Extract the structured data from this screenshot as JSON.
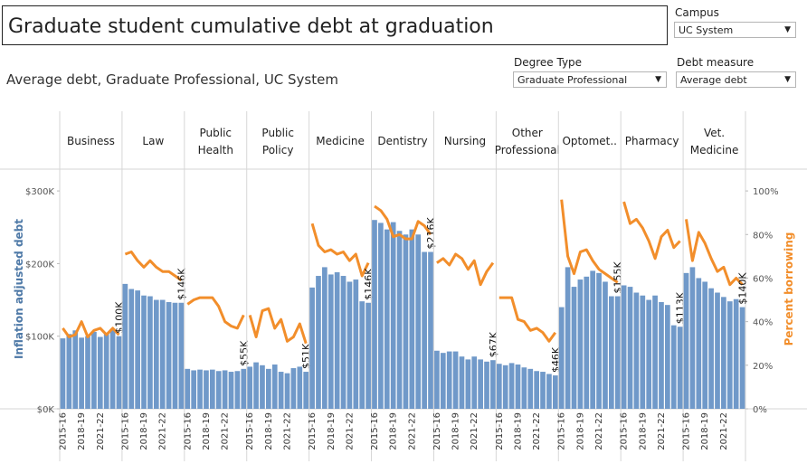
{
  "title": "Graduate student cumulative debt at graduation",
  "subtitle": "Average debt, Graduate Professional, UC System",
  "filters": {
    "campus": {
      "label": "Campus",
      "value": "UC System"
    },
    "degree_type": {
      "label": "Degree Type",
      "value": "Graduate Professional"
    },
    "debt_measure": {
      "label": "Debt measure",
      "value": "Average debt"
    }
  },
  "colors": {
    "bar": "#7099c9",
    "line": "#f28e2b",
    "left_axis": "#4e79a7",
    "right_axis": "#f28e2b"
  },
  "chart_data": {
    "type": "bar",
    "panels": [
      "Business",
      "Law",
      "Public Health",
      "Public Policy",
      "Medicine",
      "Dentistry",
      "Nursing",
      "Other Professional",
      "Optomet..",
      "Pharmacy",
      "Vet. Medicine"
    ],
    "x_tick_labels": [
      "2015-16",
      "2018-19",
      "2021-22"
    ],
    "ylabel_left": "Inflation adjusted debt",
    "ylabel_right": "Percent borrowing",
    "ylim_left": [
      0,
      330000
    ],
    "yticks_left": [
      "$0K",
      "$100K",
      "$200K",
      "$300K"
    ],
    "ylim_right": [
      0,
      1.1
    ],
    "yticks_right": [
      "0%",
      "20%",
      "40%",
      "60%",
      "80%",
      "100%"
    ],
    "series": [
      {
        "panel": "Business",
        "debt": [
          97,
          103,
          108,
          98,
          100,
          106,
          99,
          103,
          110,
          100
        ],
        "pct": [
          0.37,
          0.33,
          0.34,
          0.4,
          0.33,
          0.36,
          0.37,
          0.34,
          0.37,
          0.34
        ],
        "end_label": "$100K"
      },
      {
        "panel": "Law",
        "debt": [
          172,
          165,
          163,
          156,
          155,
          150,
          150,
          147,
          146,
          146
        ],
        "pct": [
          0.71,
          0.72,
          0.68,
          0.65,
          0.68,
          0.65,
          0.63,
          0.63,
          0.61,
          0.59
        ],
        "end_label": "$146K"
      },
      {
        "panel": "Public Health",
        "debt": [
          55,
          53,
          54,
          53,
          54,
          52,
          53,
          51,
          52,
          55
        ],
        "pct": [
          0.48,
          0.5,
          0.51,
          0.51,
          0.51,
          0.47,
          0.4,
          0.38,
          0.37,
          0.43
        ],
        "end_label": "$55K"
      },
      {
        "panel": "Public Policy",
        "debt": [
          58,
          64,
          60,
          55,
          61,
          51,
          49,
          56,
          58,
          51
        ],
        "pct": [
          0.43,
          0.33,
          0.45,
          0.46,
          0.37,
          0.41,
          0.31,
          0.33,
          0.39,
          0.3
        ],
        "end_label": "$51K"
      },
      {
        "panel": "Medicine",
        "debt": [
          167,
          183,
          195,
          185,
          188,
          183,
          175,
          178,
          148,
          146
        ],
        "pct": [
          0.85,
          0.75,
          0.72,
          0.73,
          0.71,
          0.72,
          0.68,
          0.71,
          0.61,
          0.67
        ],
        "end_label": "$146K"
      },
      {
        "panel": "Dentistry",
        "debt": [
          260,
          256,
          247,
          257,
          245,
          240,
          247,
          240,
          216,
          216
        ],
        "pct": [
          0.93,
          0.91,
          0.87,
          0.79,
          0.8,
          0.78,
          0.78,
          0.86,
          0.84,
          0.8
        ],
        "end_label": "$216K"
      },
      {
        "panel": "Nursing",
        "debt": [
          80,
          77,
          79,
          79,
          72,
          68,
          72,
          68,
          65,
          67
        ],
        "pct": [
          0.67,
          0.69,
          0.66,
          0.71,
          0.69,
          0.64,
          0.68,
          0.57,
          0.63,
          0.67
        ],
        "end_label": "$67K"
      },
      {
        "panel": "Other Professional",
        "debt": [
          62,
          60,
          63,
          61,
          57,
          55,
          52,
          51,
          48,
          46
        ],
        "pct": [
          0.51,
          0.51,
          0.51,
          0.41,
          0.4,
          0.36,
          0.37,
          0.35,
          0.31,
          0.35
        ],
        "end_label": "$46K"
      },
      {
        "panel": "Optomet..",
        "debt": [
          140,
          195,
          168,
          178,
          182,
          190,
          187,
          175,
          155,
          155
        ],
        "pct": [
          0.96,
          0.7,
          0.62,
          0.72,
          0.73,
          0.68,
          0.64,
          0.62,
          0.6,
          0.58
        ],
        "end_label": "$155K"
      },
      {
        "panel": "Pharmacy",
        "debt": [
          170,
          168,
          160,
          156,
          150,
          156,
          147,
          143,
          115,
          113
        ],
        "pct": [
          0.95,
          0.85,
          0.87,
          0.83,
          0.77,
          0.69,
          0.79,
          0.82,
          0.74,
          0.77
        ],
        "end_label": "$113K"
      },
      {
        "panel": "Vet. Medicine",
        "debt": [
          187,
          195,
          180,
          175,
          166,
          160,
          154,
          148,
          151,
          140
        ],
        "pct": [
          0.87,
          0.68,
          0.81,
          0.76,
          0.69,
          0.63,
          0.65,
          0.57,
          0.6,
          0.57
        ],
        "end_label": "$140K"
      }
    ]
  }
}
